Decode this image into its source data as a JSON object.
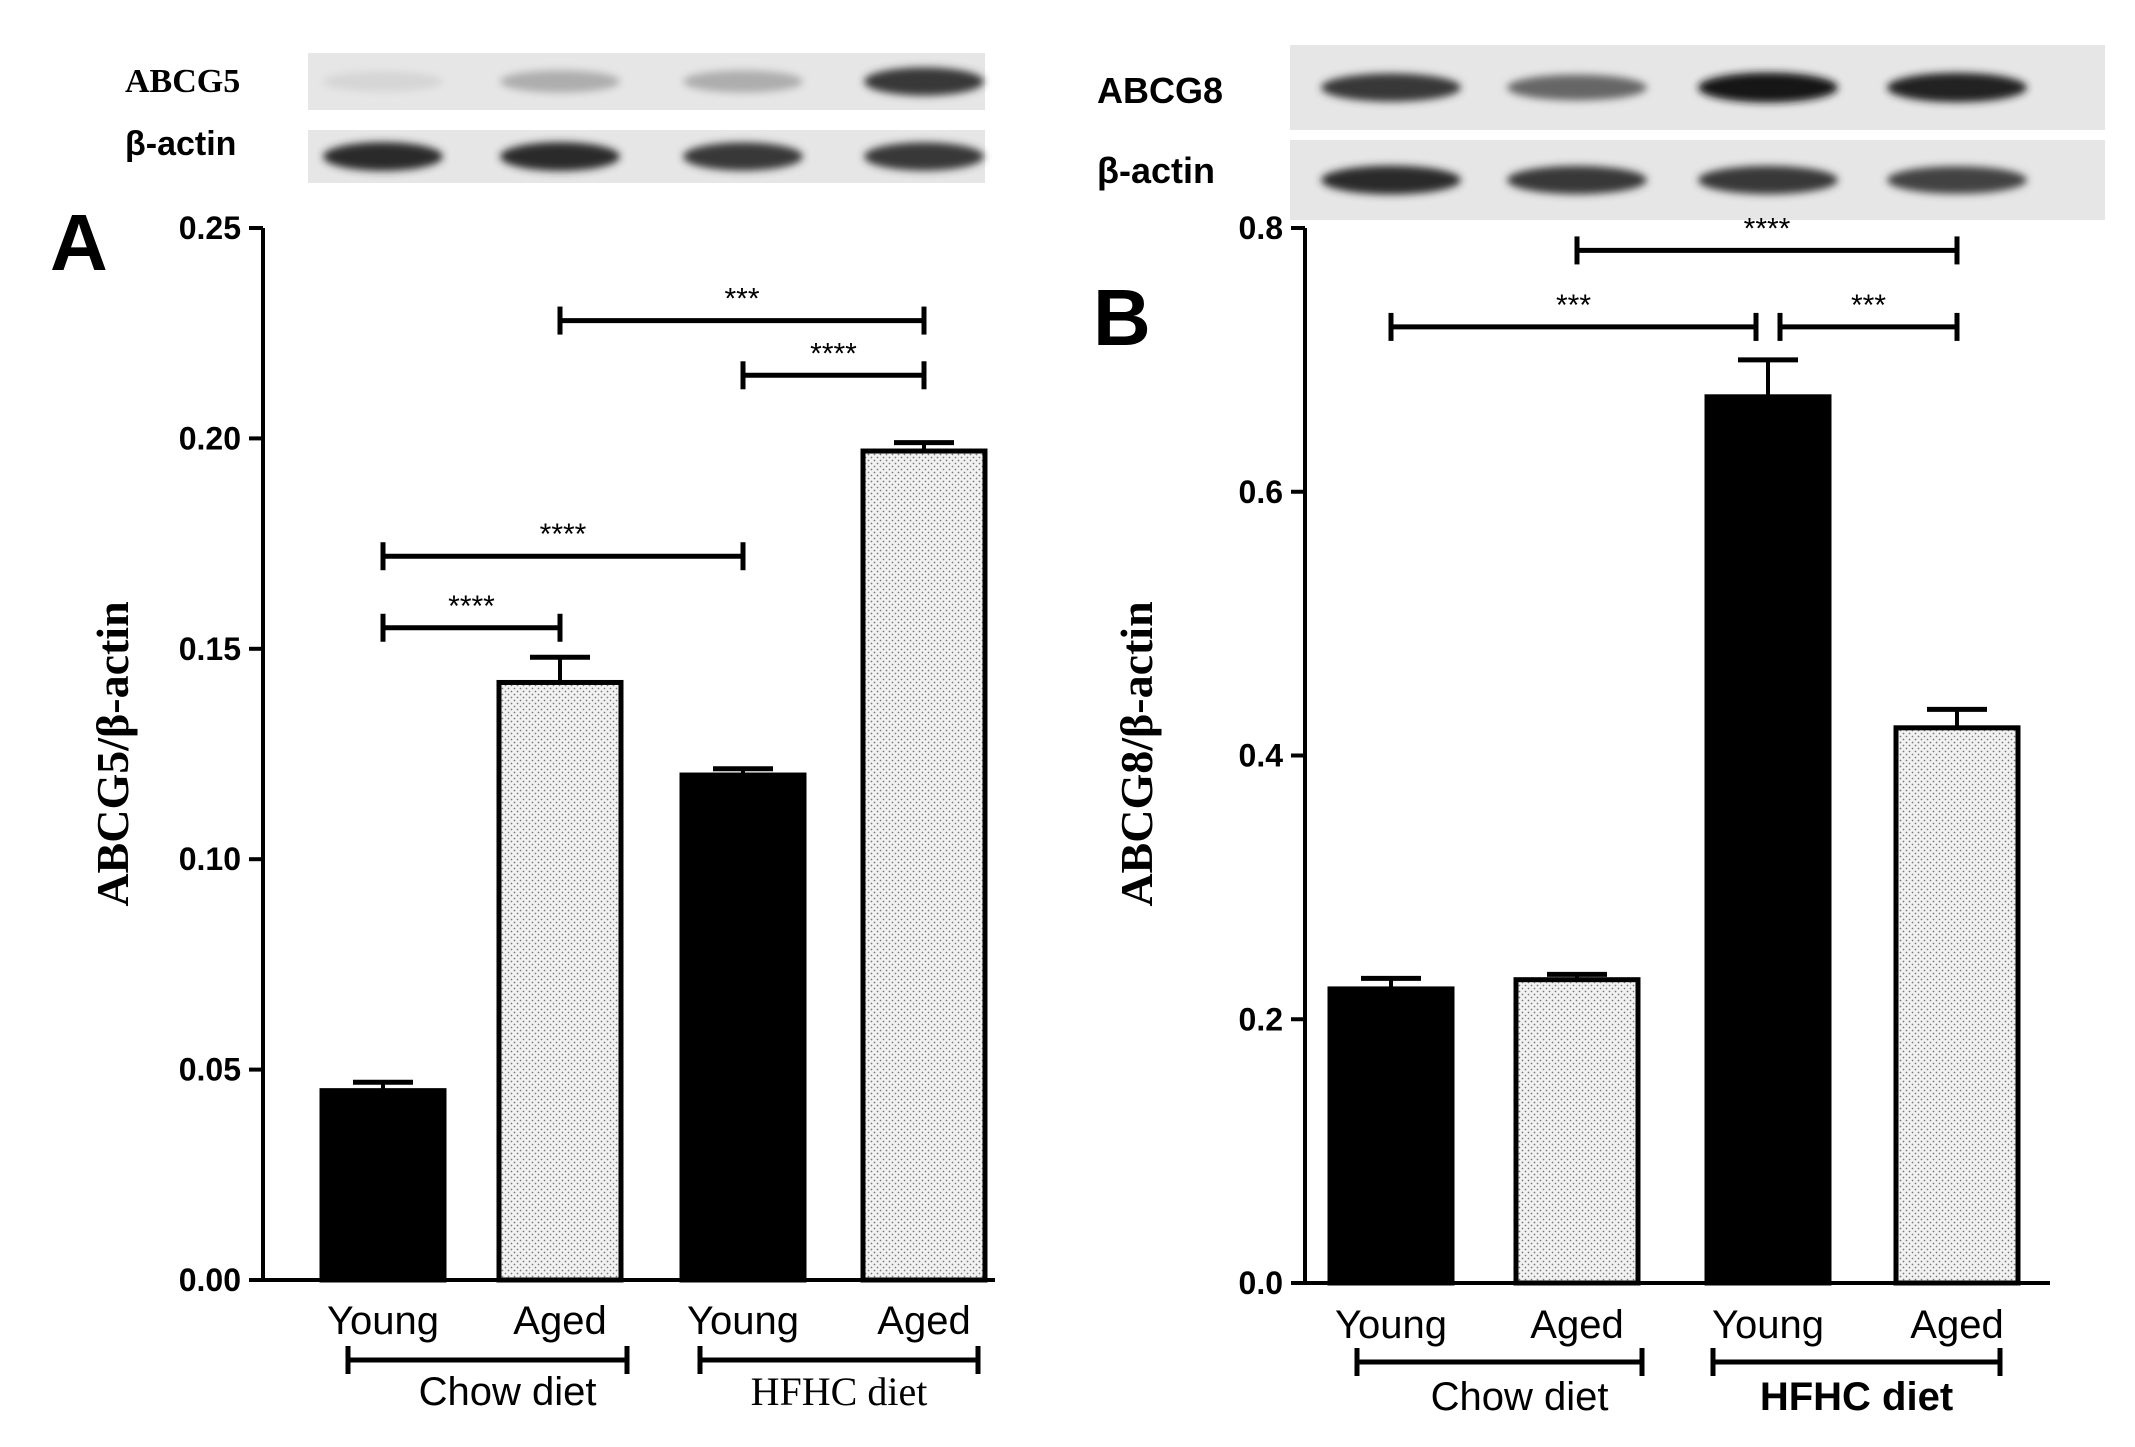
{
  "chart_data": [
    {
      "type": "bar",
      "panel_label": "A",
      "blot_labels": [
        "ABCG5",
        "β-actin"
      ],
      "categories": [
        "Young",
        "Aged",
        "Young",
        "Aged"
      ],
      "groups": [
        {
          "label": "Chow diet",
          "categories": [
            0,
            1
          ]
        },
        {
          "label": "HFHC diet",
          "categories": [
            2,
            3
          ]
        }
      ],
      "values": [
        0.045,
        0.142,
        0.12,
        0.197
      ],
      "errors": [
        0.002,
        0.006,
        0.0015,
        0.002
      ],
      "fills": [
        "solid",
        "dotted",
        "solid",
        "dotted"
      ],
      "ylabel": "ABCG5/β-actin",
      "ylim": [
        0,
        0.25
      ],
      "yticks": [
        0.0,
        0.05,
        0.1,
        0.15,
        0.2,
        0.25
      ],
      "ytick_labels": [
        "0.00",
        "0.05",
        "0.10",
        "0.15",
        "0.20",
        "0.25"
      ],
      "significance": [
        {
          "from": 0,
          "to": 1,
          "y": 0.155,
          "label": "****"
        },
        {
          "from": 0,
          "to": 2,
          "y": 0.172,
          "label": "****"
        },
        {
          "from": 2,
          "to": 3,
          "y": 0.215,
          "label": "****"
        },
        {
          "from": 1,
          "to": 3,
          "y": 0.228,
          "label": "***"
        }
      ]
    },
    {
      "type": "bar",
      "panel_label": "B",
      "blot_labels": [
        "ABCG8",
        "β-actin"
      ],
      "categories": [
        "Young",
        "Aged",
        "Young",
        "Aged"
      ],
      "groups": [
        {
          "label": "Chow diet",
          "categories": [
            0,
            1
          ]
        },
        {
          "label": "HFHC diet",
          "categories": [
            2,
            3
          ]
        }
      ],
      "values": [
        0.223,
        0.23,
        0.672,
        0.421
      ],
      "errors": [
        0.008,
        0.004,
        0.028,
        0.014
      ],
      "fills": [
        "solid",
        "dotted",
        "solid",
        "dotted"
      ],
      "ylabel": "ABCG8/β-actin",
      "ylim": [
        0,
        0.8
      ],
      "yticks": [
        0.0,
        0.2,
        0.4,
        0.6,
        0.8
      ],
      "ytick_labels": [
        "0.0",
        "0.2",
        "0.4",
        "0.6",
        "0.8"
      ],
      "significance": [
        {
          "from": 0,
          "to": 2,
          "y": 0.725,
          "label": "***"
        },
        {
          "from": 2,
          "to": 3,
          "y": 0.725,
          "label": "***"
        },
        {
          "from": 1,
          "to": 3,
          "y": 0.783,
          "label": "****"
        }
      ]
    }
  ]
}
